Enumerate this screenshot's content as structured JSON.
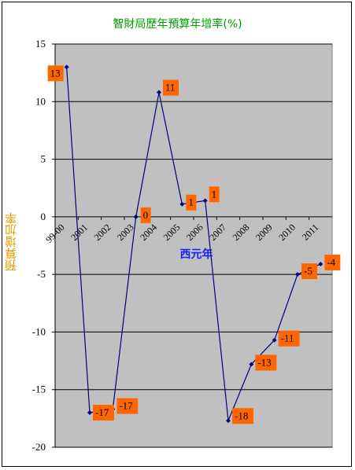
{
  "chart_data": {
    "type": "line",
    "title": "智財局歷年預算年增率(%)",
    "xlabel": "西元年",
    "ylabel": "預算增加率",
    "categories": [
      "99-00",
      "2001",
      "2002",
      "2003",
      "2004",
      "2005",
      "2006",
      "2007",
      "2008",
      "2009",
      "2010",
      "2011"
    ],
    "values": [
      13,
      -17,
      -16.7,
      0,
      10.8,
      1.1,
      1.4,
      -17.7,
      -12.8,
      -10.7,
      -5,
      -4.1
    ],
    "data_labels": [
      "13",
      "-17",
      "-17",
      "0",
      "11",
      "1",
      "1",
      "-18",
      "-13",
      "-11",
      "-5",
      "-4"
    ],
    "yticks": [
      "15",
      "10",
      "5",
      "0",
      "-5",
      "-10",
      "-15",
      "-20"
    ],
    "ylim": [
      -20,
      15
    ],
    "grid": true,
    "colors": {
      "plot_bg": "#c0c0c0",
      "line": "#000080",
      "label_bg": "#ff6600",
      "title": "#00a000",
      "ylabel": "#e6a000",
      "xlabel": "#1a1aff"
    }
  }
}
